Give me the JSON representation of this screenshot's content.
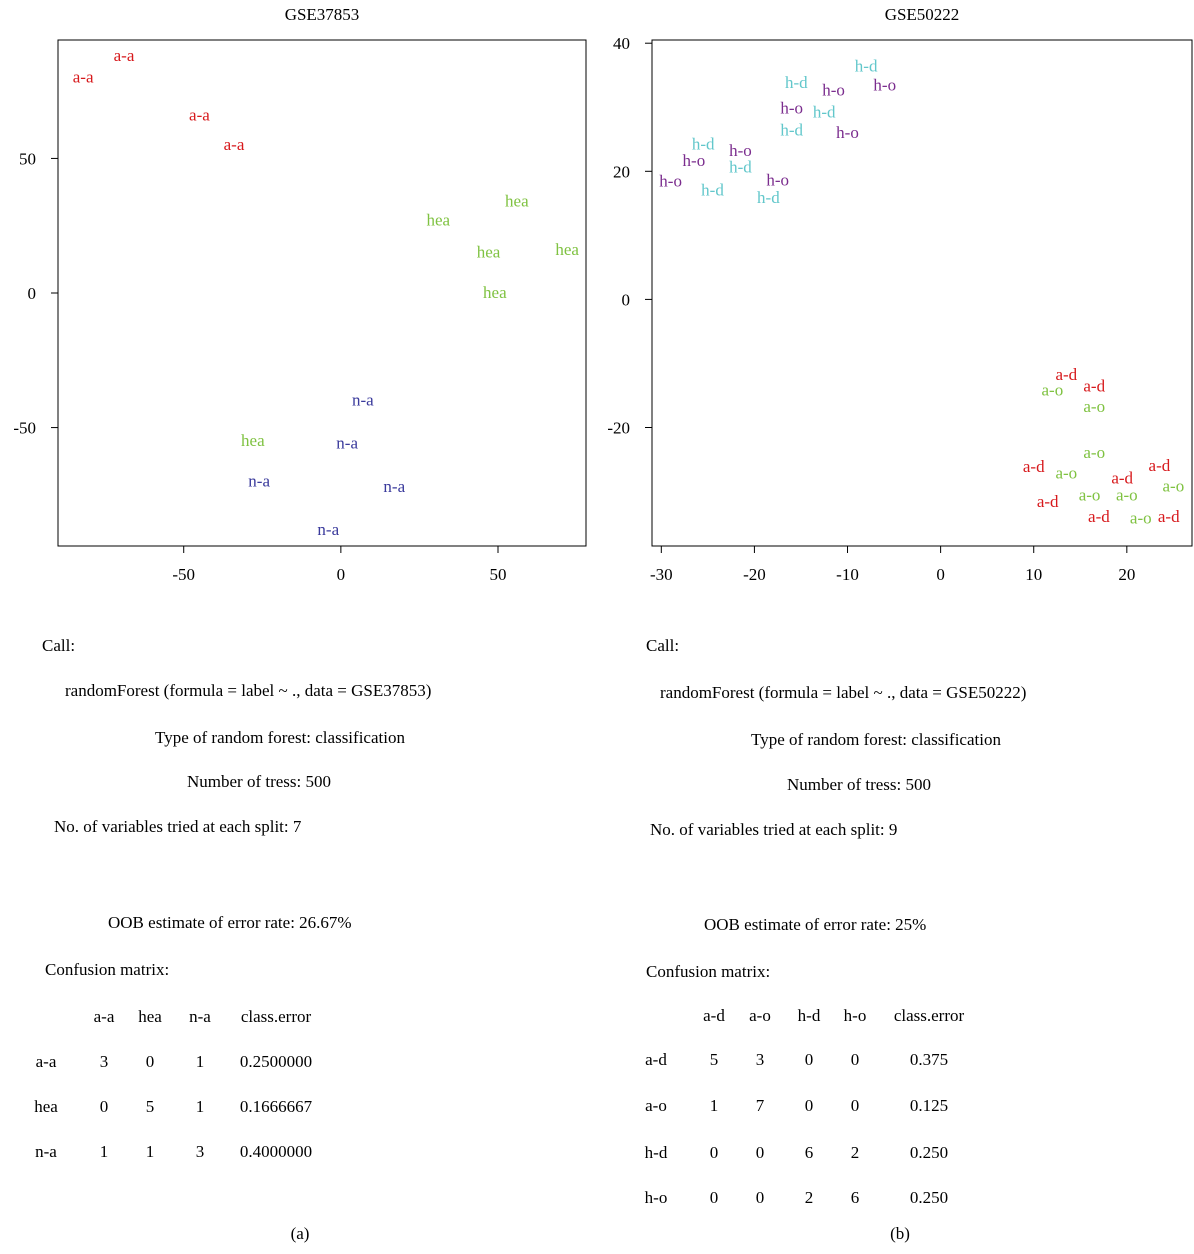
{
  "chart_data": [
    {
      "type": "scatter",
      "title": "GSE37853",
      "xlabel": "",
      "ylabel": "",
      "xlim": [
        -90,
        78
      ],
      "ylim": [
        -94,
        94
      ],
      "xticks": [
        "-50",
        "0",
        "50"
      ],
      "yticks": [
        "-50",
        "0",
        "50"
      ],
      "grid": false,
      "colors": {
        "a-a": "#d7191c",
        "hea": "#7fc241",
        "n-a": "#3a3a9c"
      },
      "points": [
        {
          "label": "a-a",
          "x": -69,
          "y": 88
        },
        {
          "label": "a-a",
          "x": -82,
          "y": 80
        },
        {
          "label": "a-a",
          "x": -45,
          "y": 66
        },
        {
          "label": "a-a",
          "x": -34,
          "y": 55
        },
        {
          "label": "hea",
          "x": 56,
          "y": 34
        },
        {
          "label": "hea",
          "x": 31,
          "y": 27
        },
        {
          "label": "hea",
          "x": 72,
          "y": 16
        },
        {
          "label": "hea",
          "x": 47,
          "y": 15
        },
        {
          "label": "hea",
          "x": 49,
          "y": 0
        },
        {
          "label": "hea",
          "x": -28,
          "y": -55
        },
        {
          "label": "n-a",
          "x": 7,
          "y": -40
        },
        {
          "label": "n-a",
          "x": 2,
          "y": -56
        },
        {
          "label": "n-a",
          "x": -26,
          "y": -70
        },
        {
          "label": "n-a",
          "x": 17,
          "y": -72
        },
        {
          "label": "n-a",
          "x": -4,
          "y": -88
        }
      ]
    },
    {
      "type": "scatter",
      "title": "GSE50222",
      "xlabel": "",
      "ylabel": "",
      "xlim": [
        -31,
        27
      ],
      "ylim": [
        -38.5,
        40.5
      ],
      "xticks": [
        "-30",
        "-20",
        "-10",
        "0",
        "10",
        "20"
      ],
      "yticks": [
        "-20",
        "0",
        "20",
        "40"
      ],
      "grid": false,
      "colors": {
        "h-d": "#62c7cb",
        "h-o": "#7b2d8e",
        "a-d": "#d7191c",
        "a-o": "#7fc241"
      },
      "points": [
        {
          "label": "h-d",
          "x": -8,
          "y": 36.4
        },
        {
          "label": "h-d",
          "x": -15.5,
          "y": 33.8
        },
        {
          "label": "h-o",
          "x": -11.5,
          "y": 32.6
        },
        {
          "label": "h-o",
          "x": -6,
          "y": 33.4
        },
        {
          "label": "h-o",
          "x": -16,
          "y": 29.8
        },
        {
          "label": "h-d",
          "x": -12.5,
          "y": 29.2
        },
        {
          "label": "h-d",
          "x": -16,
          "y": 26.4
        },
        {
          "label": "h-o",
          "x": -10,
          "y": 26.0
        },
        {
          "label": "h-d",
          "x": -25.5,
          "y": 24.2
        },
        {
          "label": "h-o",
          "x": -21.5,
          "y": 23.2
        },
        {
          "label": "h-o",
          "x": -26.5,
          "y": 21.6
        },
        {
          "label": "h-d",
          "x": -21.5,
          "y": 20.6
        },
        {
          "label": "h-o",
          "x": -29,
          "y": 18.4
        },
        {
          "label": "h-o",
          "x": -17.5,
          "y": 18.6
        },
        {
          "label": "h-d",
          "x": -24.5,
          "y": 17.0
        },
        {
          "label": "h-d",
          "x": -18.5,
          "y": 15.8
        },
        {
          "label": "a-d",
          "x": 13.5,
          "y": -11.8
        },
        {
          "label": "a-d",
          "x": 16.5,
          "y": -13.6
        },
        {
          "label": "a-o",
          "x": 12,
          "y": -14.2
        },
        {
          "label": "a-o",
          "x": 16.5,
          "y": -16.8
        },
        {
          "label": "a-o",
          "x": 16.5,
          "y": -24.0
        },
        {
          "label": "a-d",
          "x": 10,
          "y": -26.2
        },
        {
          "label": "a-d",
          "x": 23.5,
          "y": -26.0
        },
        {
          "label": "a-o",
          "x": 13.5,
          "y": -27.2
        },
        {
          "label": "a-d",
          "x": 19.5,
          "y": -28.0
        },
        {
          "label": "a-o",
          "x": 25,
          "y": -29.2
        },
        {
          "label": "a-o",
          "x": 16,
          "y": -30.6
        },
        {
          "label": "a-o",
          "x": 20,
          "y": -30.6
        },
        {
          "label": "a-d",
          "x": 11.5,
          "y": -31.6
        },
        {
          "label": "a-d",
          "x": 17,
          "y": -34.0
        },
        {
          "label": "a-o",
          "x": 21.5,
          "y": -34.2
        },
        {
          "label": "a-d",
          "x": 24.5,
          "y": -34.0
        }
      ]
    }
  ],
  "panel_a": {
    "call_label": "Call:",
    "formula": "randomForest (formula = label ~ ., data = GSE37853)",
    "type_line": "Type of random forest: classification",
    "trees_line": "Number of tress: 500",
    "vars_line": "No. of variables tried at each split: 7",
    "oob_line": "OOB estimate of error rate: 26.67%",
    "matrix_label": "Confusion matrix:",
    "matrix_header": [
      "a-a",
      "hea",
      "n-a",
      "class.error"
    ],
    "matrix_rows": [
      {
        "label": "a-a",
        "cells": [
          "3",
          "0",
          "1",
          "0.2500000"
        ]
      },
      {
        "label": "hea",
        "cells": [
          "0",
          "5",
          "1",
          "0.1666667"
        ]
      },
      {
        "label": "n-a",
        "cells": [
          "1",
          "1",
          "3",
          "0.4000000"
        ]
      }
    ],
    "caption": "(a)"
  },
  "panel_b": {
    "call_label": "Call:",
    "formula": "randomForest (formula = label ~ ., data = GSE50222)",
    "type_line": "Type of random forest: classification",
    "trees_line": "Number of tress: 500",
    "vars_line": "No. of variables tried at each split: 9",
    "oob_line": "OOB estimate of error rate: 25%",
    "matrix_label": "Confusion matrix:",
    "matrix_header": [
      "a-d",
      "a-o",
      "h-d",
      "h-o",
      "class.error"
    ],
    "matrix_rows": [
      {
        "label": "a-d",
        "cells": [
          "5",
          "3",
          "0",
          "0",
          "0.375"
        ]
      },
      {
        "label": "a-o",
        "cells": [
          "1",
          "7",
          "0",
          "0",
          "0.125"
        ]
      },
      {
        "label": "h-d",
        "cells": [
          "0",
          "0",
          "6",
          "2",
          "0.250"
        ]
      },
      {
        "label": "h-o",
        "cells": [
          "0",
          "0",
          "2",
          "6",
          "0.250"
        ]
      }
    ],
    "caption": "(b)"
  }
}
